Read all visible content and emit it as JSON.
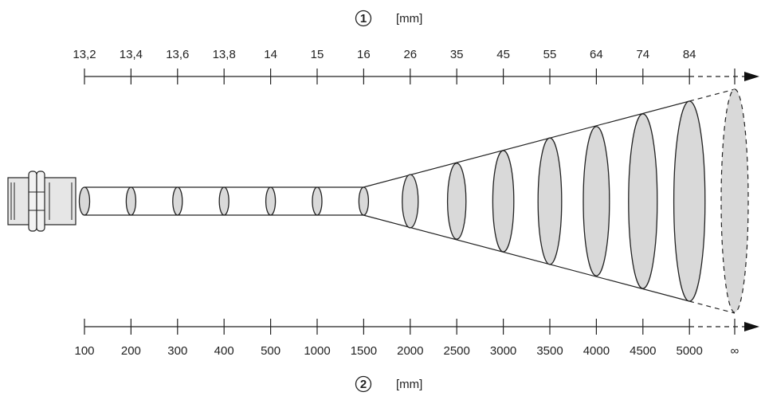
{
  "top_scale": {
    "marker": "1",
    "unit": "[mm]",
    "labels": [
      "13,2",
      "13,4",
      "13,6",
      "13,8",
      "14",
      "15",
      "16",
      "26",
      "35",
      "45",
      "55",
      "64",
      "74",
      "84"
    ]
  },
  "bottom_scale": {
    "marker": "2",
    "unit": "[mm]",
    "labels": [
      "100",
      "200",
      "300",
      "400",
      "500",
      "1000",
      "1500",
      "2000",
      "2500",
      "3000",
      "3500",
      "4000",
      "4500",
      "5000"
    ],
    "infinity_label": "∞"
  },
  "spot_diameters_mm": [
    13.2,
    13.4,
    13.6,
    13.8,
    14,
    15,
    16,
    26,
    35,
    45,
    55,
    64,
    74,
    84
  ],
  "distances_mm": [
    100,
    200,
    300,
    400,
    500,
    1000,
    1500,
    2000,
    2500,
    3000,
    3500,
    4000,
    4500,
    5000
  ],
  "colors": {
    "line": "#222222",
    "fill": "#d9d9d9",
    "sensor_fill": "#e6e6e6"
  }
}
